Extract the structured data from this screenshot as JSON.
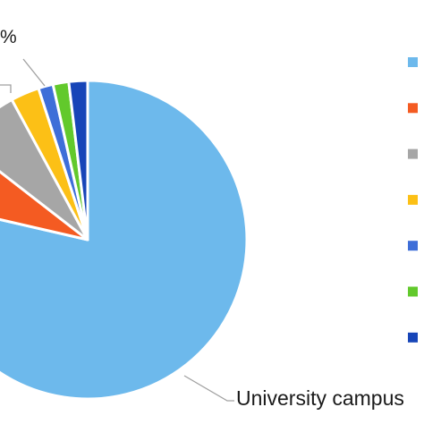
{
  "chart_data": {
    "type": "pie",
    "start_angle_deg": 0,
    "direction": "clockwise",
    "slices": [
      {
        "label": "University campus",
        "value": 78.6,
        "color": "#6DB9EC"
      },
      {
        "label": "",
        "value": 6.9,
        "color": "#F45B22"
      },
      {
        "label": "",
        "value": 6.6,
        "color": "#A6A6A6"
      },
      {
        "label": "",
        "value": 2.9,
        "color": "#FCC016"
      },
      {
        "label": "",
        "value": 1.5,
        "color": "#3E6ED8"
      },
      {
        "label": "",
        "value": 1.6,
        "color": "#62C92C"
      },
      {
        "label": "",
        "value": 1.9,
        "color": "#1745B8"
      }
    ],
    "callouts": [
      {
        "text": "%"
      },
      {
        "text": "University campus"
      }
    ],
    "legend": {
      "position": "right",
      "colors": [
        "#6DB9EC",
        "#F45B22",
        "#A6A6A6",
        "#FCC016",
        "#3E6ED8",
        "#62C92C",
        "#1745B8"
      ]
    }
  }
}
